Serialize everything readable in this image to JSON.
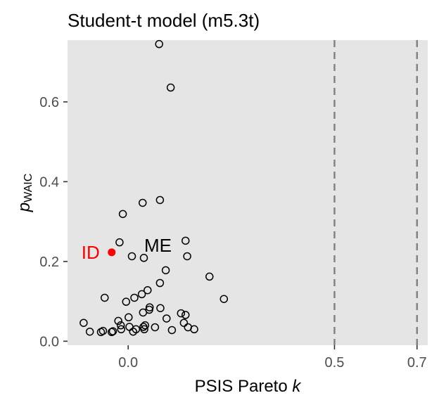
{
  "chart_data": {
    "type": "scatter",
    "title": "Student-t model (m5.3t)",
    "xlabel": {
      "main": "PSIS Pareto ",
      "italic": "k"
    },
    "ylabel": {
      "main": "p",
      "sub": "WAIC"
    },
    "xlim": [
      -0.147,
      0.726
    ],
    "ylim": [
      -0.01,
      0.755
    ],
    "x_ticks": [
      {
        "value": 0.0,
        "label": "0.0"
      },
      {
        "value": 0.5,
        "label": "0.5"
      },
      {
        "value": 0.7,
        "label": "0.7"
      }
    ],
    "y_ticks": [
      {
        "value": 0.0,
        "label": "0.0"
      },
      {
        "value": 0.2,
        "label": "0.2"
      },
      {
        "value": 0.4,
        "label": "0.4"
      },
      {
        "value": 0.6,
        "label": "0.6"
      }
    ],
    "reference_lines_x": [
      0.5,
      0.7
    ],
    "colors": {
      "panel": "#e5e5e5",
      "highlight": "#ff0000",
      "ref_line": "#7f7f7f",
      "point": "#000000"
    },
    "points": [
      {
        "x": 0.075,
        "y": 0.745
      },
      {
        "x": 0.103,
        "y": 0.636
      },
      {
        "x": 0.077,
        "y": 0.354
      },
      {
        "x": 0.035,
        "y": 0.347
      },
      {
        "x": -0.013,
        "y": 0.319
      },
      {
        "x": -0.021,
        "y": 0.248
      },
      {
        "x": 0.139,
        "y": 0.252
      },
      {
        "x": 0.009,
        "y": 0.213
      },
      {
        "x": 0.038,
        "y": 0.209
      },
      {
        "x": 0.143,
        "y": 0.213
      },
      {
        "x": 0.091,
        "y": 0.178
      },
      {
        "x": 0.197,
        "y": 0.162
      },
      {
        "x": 0.077,
        "y": 0.146
      },
      {
        "x": 0.047,
        "y": 0.128
      },
      {
        "x": 0.033,
        "y": 0.118
      },
      {
        "x": 0.015,
        "y": 0.109
      },
      {
        "x": -0.057,
        "y": 0.109
      },
      {
        "x": 0.232,
        "y": 0.106
      },
      {
        "x": -0.005,
        "y": 0.099
      },
      {
        "x": 0.052,
        "y": 0.085
      },
      {
        "x": 0.078,
        "y": 0.083
      },
      {
        "x": 0.051,
        "y": 0.079
      },
      {
        "x": 0.036,
        "y": 0.072
      },
      {
        "x": 0.128,
        "y": 0.07
      },
      {
        "x": 0.139,
        "y": 0.066
      },
      {
        "x": 0.001,
        "y": 0.06
      },
      {
        "x": 0.093,
        "y": 0.057
      },
      {
        "x": -0.024,
        "y": 0.051
      },
      {
        "x": -0.108,
        "y": 0.046
      },
      {
        "x": 0.135,
        "y": 0.046
      },
      {
        "x": -0.018,
        "y": 0.04
      },
      {
        "x": 0.041,
        "y": 0.04
      },
      {
        "x": 0.037,
        "y": 0.036
      },
      {
        "x": 0.003,
        "y": 0.036
      },
      {
        "x": 0.065,
        "y": 0.035
      },
      {
        "x": 0.145,
        "y": 0.035
      },
      {
        "x": -0.017,
        "y": 0.03
      },
      {
        "x": 0.039,
        "y": 0.03
      },
      {
        "x": 0.16,
        "y": 0.03
      },
      {
        "x": 0.019,
        "y": 0.03
      },
      {
        "x": 0.106,
        "y": 0.028
      },
      {
        "x": -0.061,
        "y": 0.026
      },
      {
        "x": -0.037,
        "y": 0.025
      },
      {
        "x": -0.093,
        "y": 0.024
      },
      {
        "x": 0.012,
        "y": 0.024
      },
      {
        "x": -0.04,
        "y": 0.023
      },
      {
        "x": -0.066,
        "y": 0.023
      }
    ],
    "highlighted": [
      {
        "label": "ID",
        "x": -0.04,
        "y": 0.223
      }
    ],
    "annotations": [
      {
        "text": "ME",
        "x": 0.072,
        "y": 0.24
      }
    ]
  }
}
